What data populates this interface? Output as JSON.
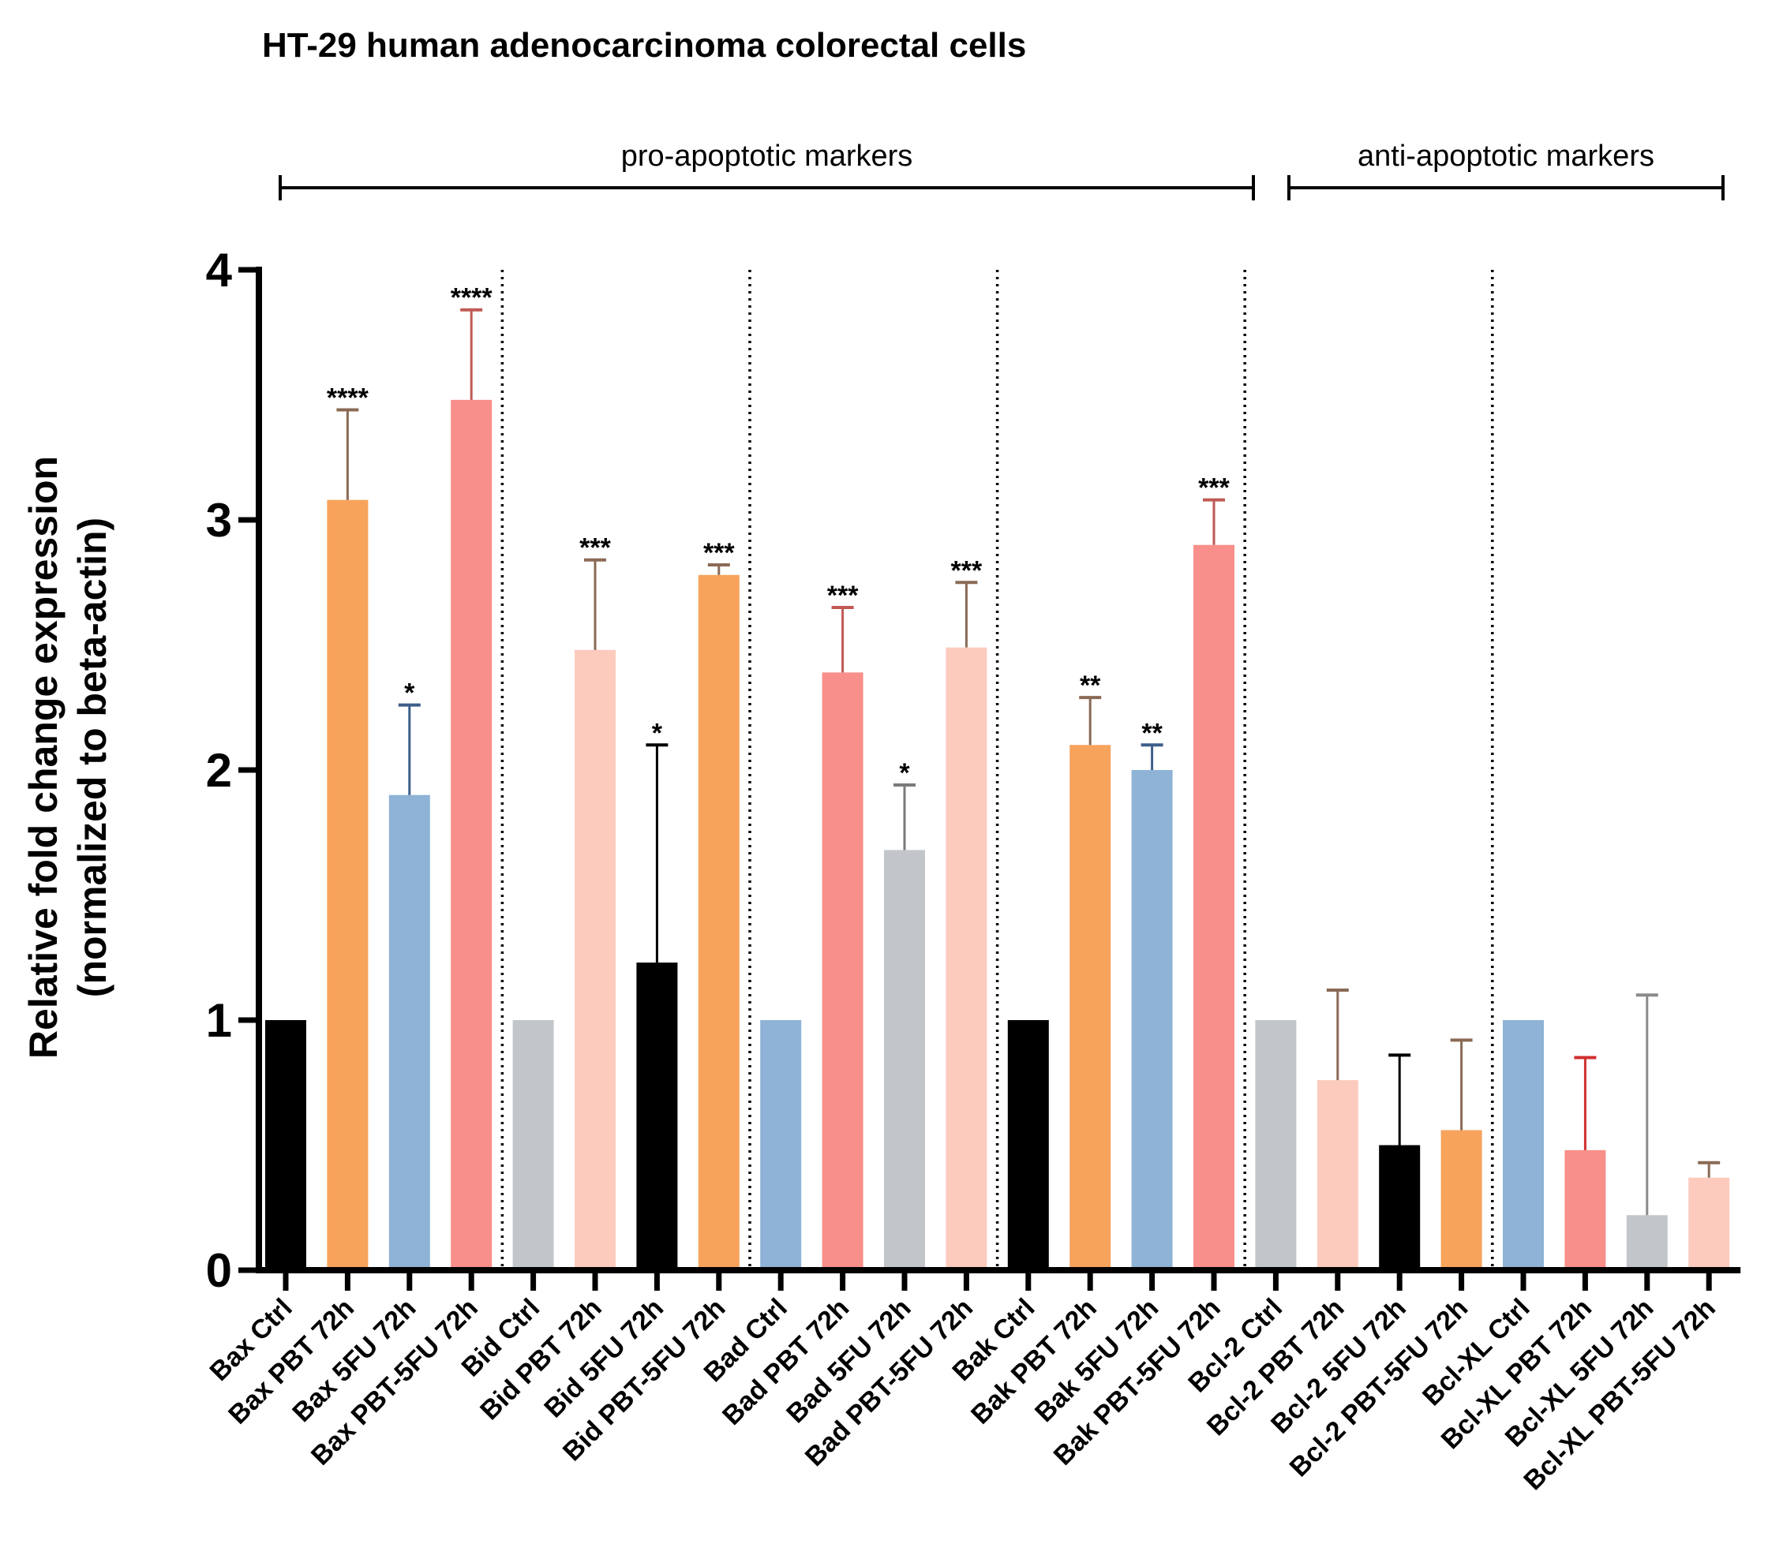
{
  "chart_data": {
    "type": "bar",
    "title": "HT-29  human adenocarcinoma colorectal cells",
    "ylabel_line1": "Relative fold change expression",
    "ylabel_line2": "(normalized to beta-actin)",
    "xlabel": "",
    "ylim": [
      0,
      4
    ],
    "yticks": [
      "0",
      "1",
      "2",
      "3",
      "4"
    ],
    "groups": [
      {
        "label": "pro-apoptotic markers",
        "first": 0,
        "last": 15
      },
      {
        "label": "anti-apoptotic markers",
        "first": 16,
        "last": 23
      }
    ],
    "separators_after": [
      3,
      7,
      11,
      15,
      19
    ],
    "categories": [
      "Bax Ctrl",
      "Bax PBT 72h",
      "Bax 5FU 72h",
      "Bax PBT-5FU 72h",
      "Bid Ctrl",
      "Bid PBT 72h",
      "Bid 5FU 72h",
      "Bid PBT-5FU 72h",
      "Bad Ctrl",
      "Bad PBT 72h",
      "Bad 5FU 72h",
      "Bad PBT-5FU 72h",
      "Bak Ctrl",
      "Bak PBT 72h",
      "Bak 5FU 72h",
      "Bak PBT-5FU 72h",
      "Bcl-2 Ctrl",
      "Bcl-2 PBT 72h",
      "Bcl-2 5FU 72h",
      "Bcl-2 PBT-5FU 72h",
      "Bcl-XL Ctrl",
      "Bcl-XL PBT 72h",
      "Bcl-XL 5FU 72h",
      "Bcl-XL PBT-5FU 72h"
    ],
    "values": [
      1.0,
      3.08,
      1.9,
      3.48,
      1.0,
      2.48,
      1.23,
      2.78,
      1.0,
      2.39,
      1.68,
      2.49,
      1.0,
      2.1,
      2.0,
      2.9,
      1.0,
      0.76,
      0.5,
      0.56,
      1.0,
      0.48,
      0.22,
      0.37
    ],
    "error_upper": [
      null,
      3.44,
      2.26,
      3.84,
      null,
      2.84,
      2.1,
      2.82,
      null,
      2.65,
      1.94,
      2.75,
      null,
      2.29,
      2.1,
      3.08,
      null,
      1.12,
      0.86,
      0.92,
      null,
      0.85,
      1.1,
      0.43
    ],
    "significance": [
      "",
      "****",
      "*",
      "****",
      "",
      "***",
      "*",
      "***",
      "",
      "***",
      "*",
      "***",
      "",
      "**",
      "**",
      "***",
      "",
      "",
      "",
      "",
      "",
      "",
      "",
      ""
    ],
    "colors": [
      "#000000",
      "#f7a35c",
      "#8fb3d6",
      "#f98f8a",
      "#c2c6ca",
      "#fccbbe",
      "#000000",
      "#f7a35c",
      "#8fb3d6",
      "#f98f8a",
      "#c2c6ca",
      "#fccbbe",
      "#000000",
      "#f7a35c",
      "#8fb3d6",
      "#f98f8a",
      "#c2c6ca",
      "#fccbbe",
      "#000000",
      "#f7a35c",
      "#8fb3d6",
      "#f98f8a",
      "#c2c6ca",
      "#fccbbe"
    ],
    "error_colors": [
      "",
      "#8a6a55",
      "#3d5f8a",
      "#c05a55",
      "",
      "#8a6a55",
      "#000000",
      "#8a6a55",
      "",
      "#c05a55",
      "#7a7a7a",
      "#8a6a55",
      "",
      "#8a6a55",
      "#3d5f8a",
      "#c05a55",
      "",
      "#8a6a55",
      "#000000",
      "#8a6a55",
      "",
      "#d03030",
      "#8a8a8a",
      "#8a6a55"
    ]
  }
}
